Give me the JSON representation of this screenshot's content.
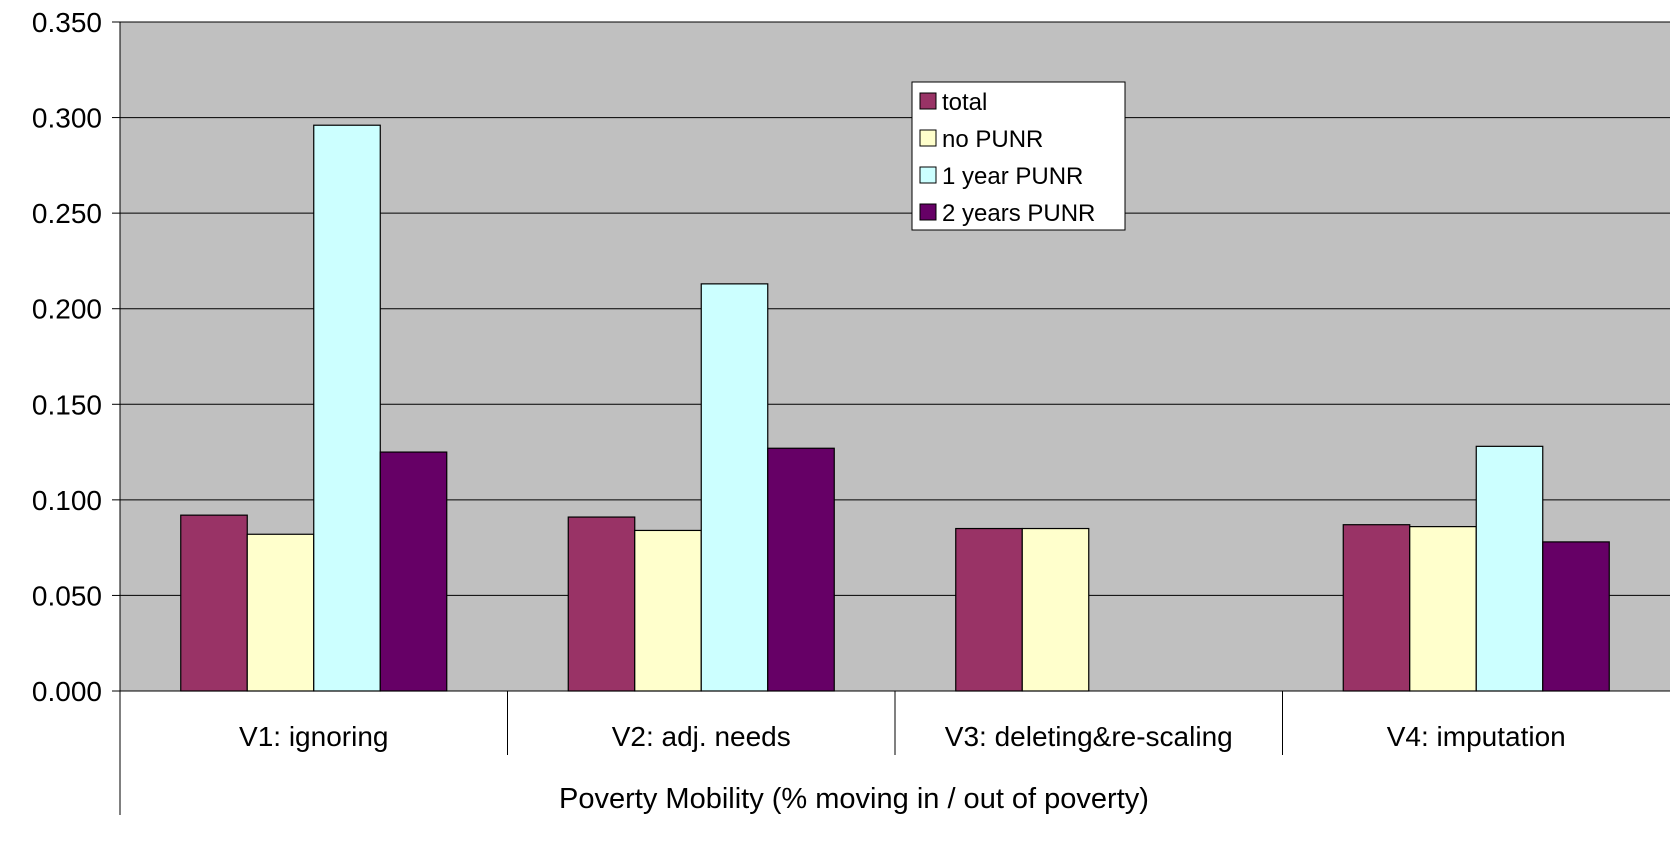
{
  "chart_data": {
    "type": "bar",
    "title": "",
    "xlabel": "Poverty Mobility (% moving in / out of poverty)",
    "ylabel": "",
    "ylim": [
      0,
      0.35
    ],
    "yticks": [
      "0.000",
      "0.050",
      "0.100",
      "0.150",
      "0.200",
      "0.250",
      "0.300",
      "0.350"
    ],
    "grid": true,
    "legend_position": "top-center",
    "plot_background": "#C0C0C0",
    "categories": [
      "V1: ignoring",
      "V2: adj. needs",
      "V3: deleting&re-scaling",
      "V4: imputation"
    ],
    "series": [
      {
        "name": "total",
        "color": "#993366",
        "values": [
          0.092,
          0.091,
          0.085,
          0.087
        ]
      },
      {
        "name": "no PUNR",
        "color": "#FFFFCC",
        "values": [
          0.082,
          0.084,
          0.085,
          0.086
        ]
      },
      {
        "name": "1 year PUNR",
        "color": "#CCFFFF",
        "values": [
          0.296,
          0.213,
          null,
          0.128
        ]
      },
      {
        "name": "2 years PUNR",
        "color": "#660066",
        "values": [
          0.125,
          0.127,
          null,
          0.078
        ]
      }
    ]
  }
}
